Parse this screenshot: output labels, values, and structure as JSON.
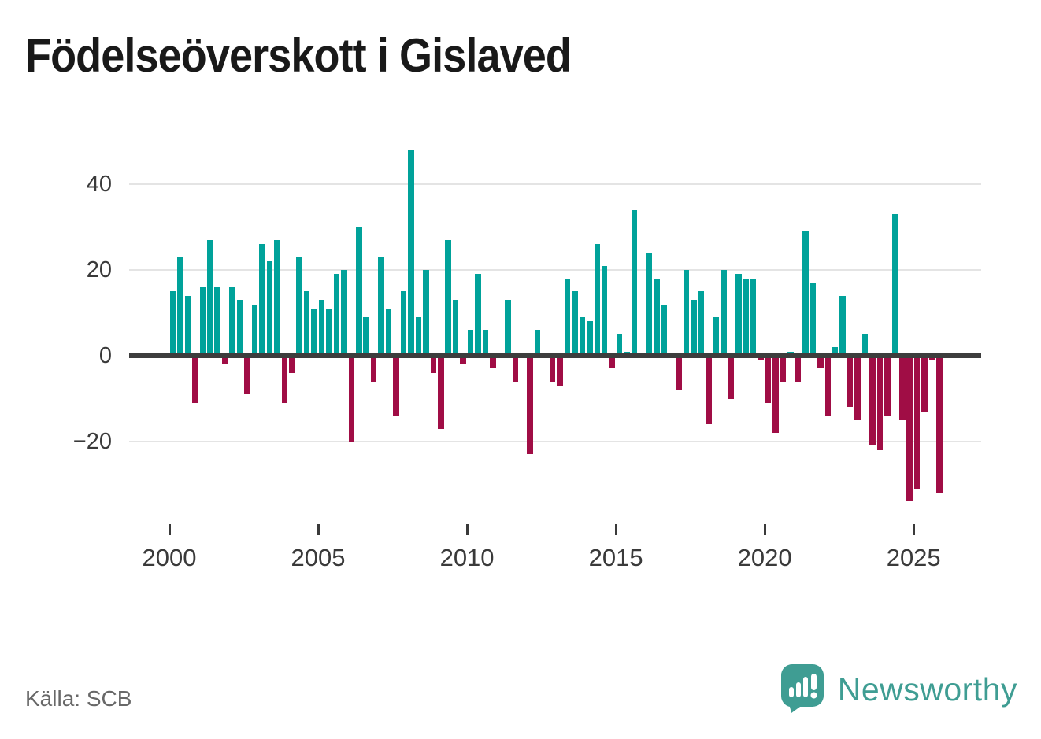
{
  "title": "Födelseöverskott i Gislaved",
  "source_label": "Källa: SCB",
  "brand": {
    "wordmark": "Newsworthy",
    "logo_icon": "bar-chart-speech-bubble-icon"
  },
  "colors": {
    "positive": "#00a29a",
    "negative": "#a00d45",
    "brand_teal": "#3f9d93",
    "title_text": "#191919",
    "axis_text": "#3a3a3a",
    "source_text": "#686868",
    "gridline": "#e4e4e4",
    "zero_line": "#3d3d3d",
    "background": "#ffffff"
  },
  "chart_data": {
    "type": "bar",
    "title": "Födelseöverskott i Gislaved",
    "frequency": "quarterly",
    "start": "2000Q1",
    "end": "2025Q4",
    "values": [
      15,
      23,
      14,
      -11,
      16,
      27,
      16,
      -2,
      16,
      13,
      -9,
      12,
      26,
      22,
      27,
      -11,
      -4,
      23,
      15,
      11,
      13,
      11,
      19,
      20,
      -20,
      30,
      9,
      -6,
      23,
      11,
      -14,
      15,
      48,
      9,
      20,
      -4,
      -17,
      27,
      13,
      -2,
      6,
      19,
      6,
      -3,
      0,
      13,
      -6,
      0,
      -23,
      6,
      0,
      -6,
      -7,
      18,
      15,
      9,
      8,
      26,
      21,
      -3,
      5,
      1,
      34,
      0,
      24,
      18,
      12,
      0,
      -8,
      20,
      13,
      15,
      -16,
      9,
      20,
      -10,
      19,
      18,
      18,
      -1,
      -11,
      -18,
      -6,
      1,
      -6,
      29,
      17,
      -3,
      -14,
      2,
      14,
      -12,
      -15,
      5,
      -21,
      -22,
      -14,
      33,
      -15,
      -34,
      -31,
      -13,
      -1,
      -32
    ],
    "x_ticks": [
      2000,
      2005,
      2010,
      2015,
      2020,
      2025
    ],
    "y_ticks": [
      40,
      20,
      0,
      -20
    ],
    "ylim": [
      -36,
      50
    ],
    "grid": "horizontal",
    "legend": "none",
    "positive_color": "#00a29a",
    "negative_color": "#a00d45"
  }
}
